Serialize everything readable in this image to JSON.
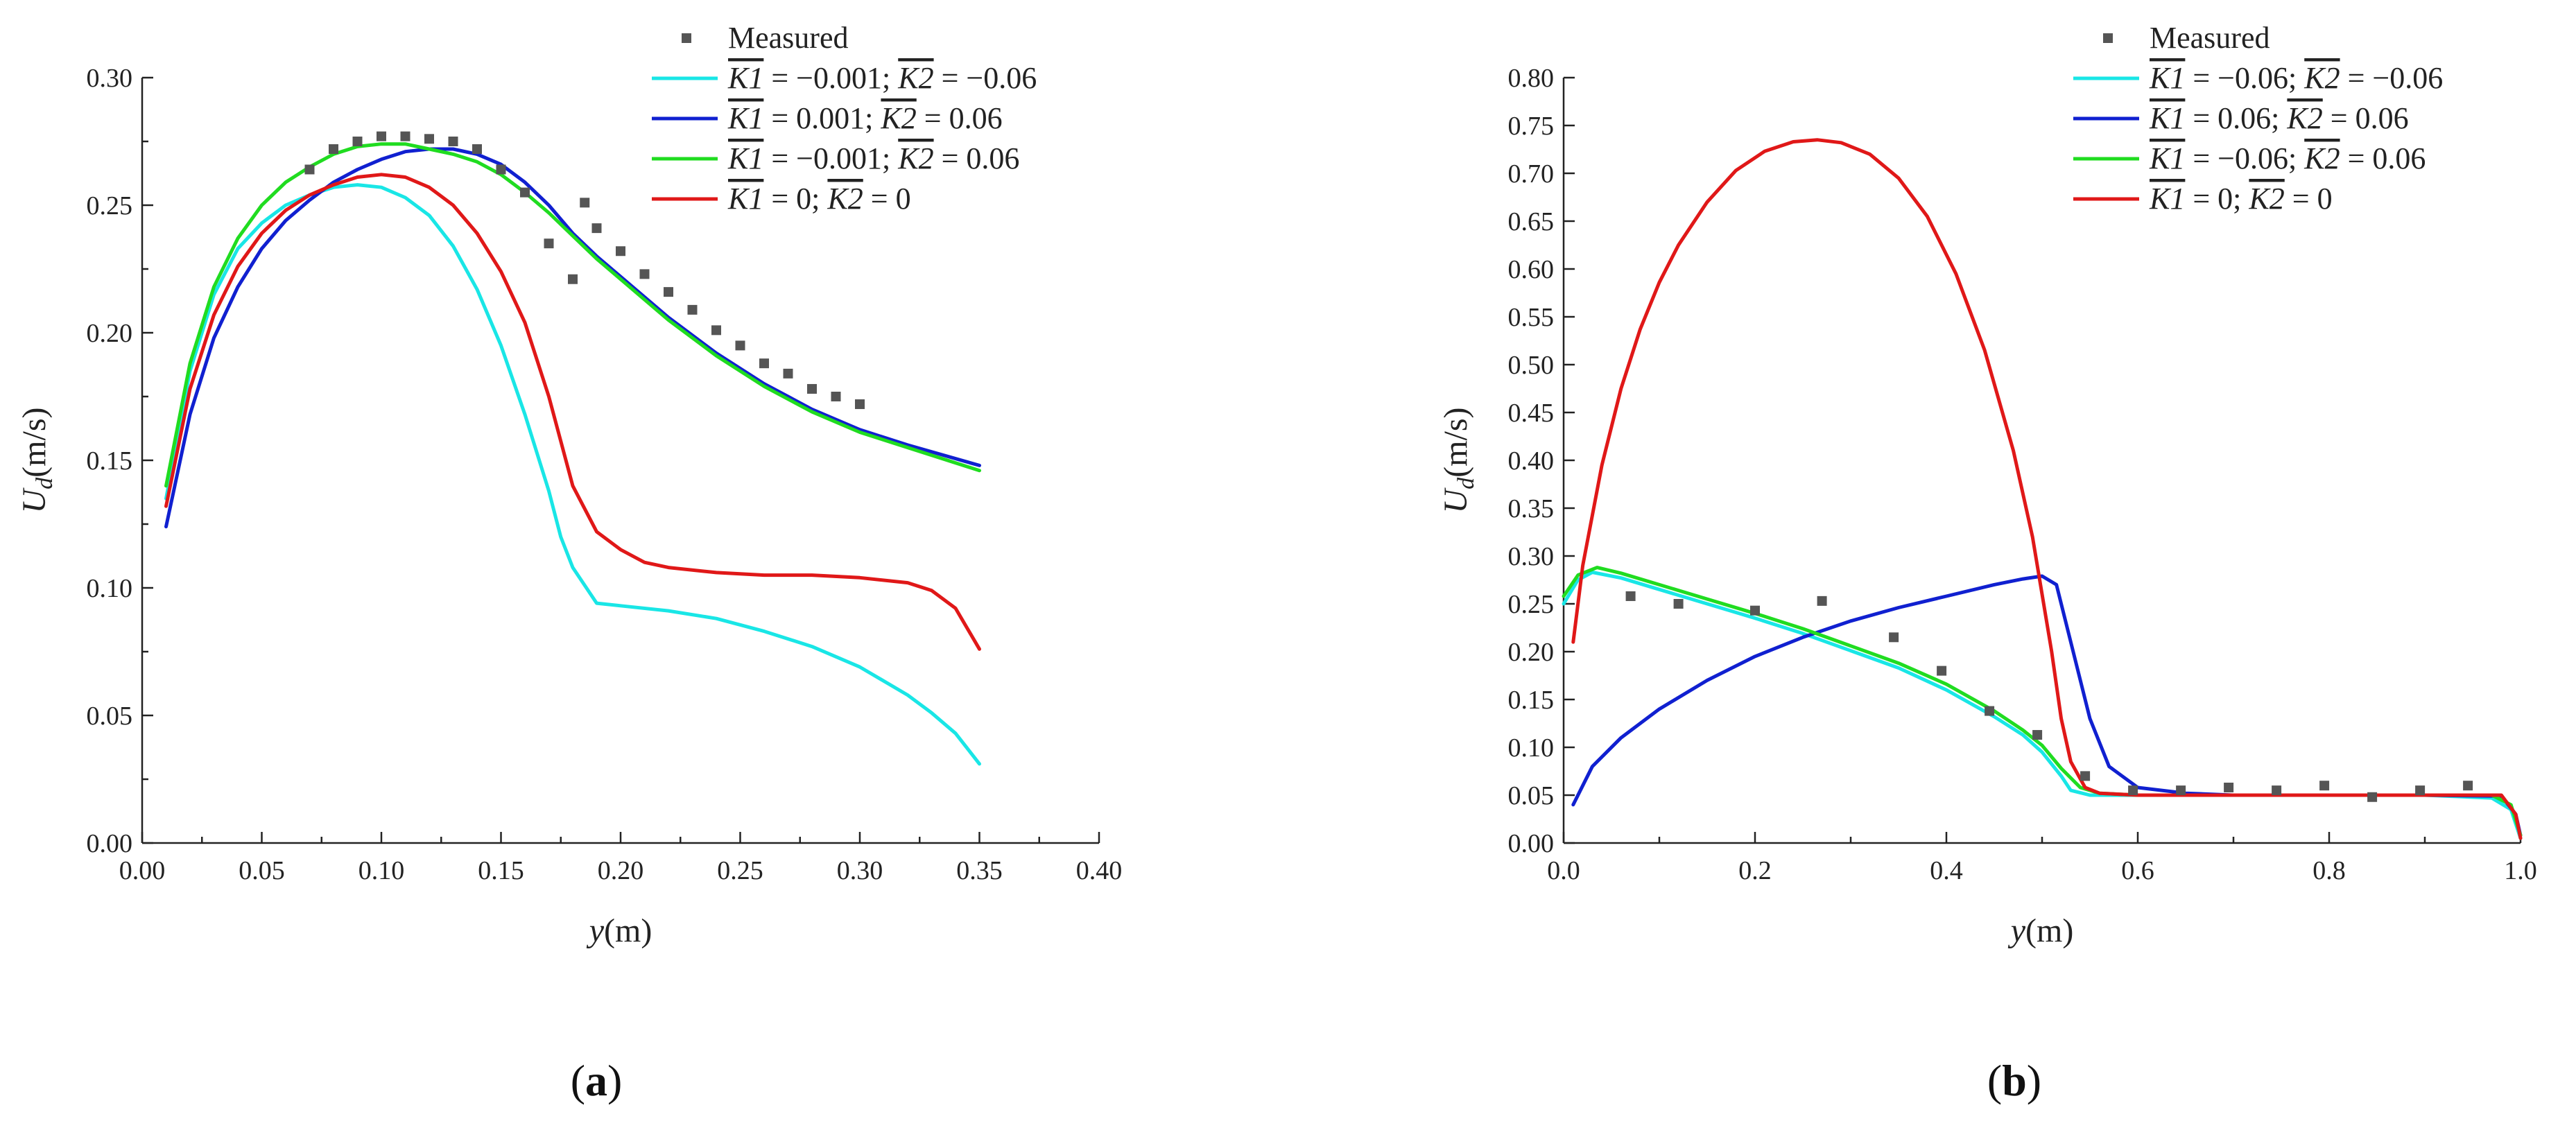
{
  "chart_data": [
    {
      "type": "line",
      "panel_label": "(a)",
      "xlabel": "y(m)",
      "ylabel": "Ud(m/s)",
      "xlim": [
        0.0,
        0.4
      ],
      "ylim": [
        0.0,
        0.3
      ],
      "xticks": [
        "0.00",
        "0.05",
        "0.10",
        "0.15",
        "0.20",
        "0.25",
        "0.30",
        "0.35",
        "0.40"
      ],
      "yticks": [
        "0.00",
        "0.05",
        "0.10",
        "0.15",
        "0.20",
        "0.25",
        "0.30"
      ],
      "legend_position": "top-right",
      "measured": {
        "name": "Measured",
        "color": "#555555",
        "x": [
          0.07,
          0.08,
          0.09,
          0.1,
          0.11,
          0.12,
          0.13,
          0.14,
          0.15,
          0.16,
          0.17,
          0.18,
          0.185,
          0.19,
          0.2,
          0.21,
          0.22,
          0.23,
          0.24,
          0.25,
          0.26,
          0.27,
          0.28,
          0.29,
          0.3
        ],
        "y": [
          0.264,
          0.272,
          0.275,
          0.277,
          0.277,
          0.276,
          0.275,
          0.272,
          0.264,
          0.255,
          0.235,
          0.221,
          0.251,
          0.241,
          0.232,
          0.223,
          0.216,
          0.209,
          0.201,
          0.195,
          0.188,
          0.184,
          0.178,
          0.175,
          0.172
        ]
      },
      "series": [
        {
          "name": "K1 = −0.001; K2 = −0.06",
          "k1": "−0.001",
          "k2": "−0.06",
          "color": "#19e6e6",
          "x": [
            0.01,
            0.02,
            0.03,
            0.04,
            0.05,
            0.06,
            0.07,
            0.08,
            0.09,
            0.1,
            0.11,
            0.12,
            0.13,
            0.14,
            0.15,
            0.16,
            0.17,
            0.175,
            0.18,
            0.19,
            0.2,
            0.22,
            0.24,
            0.26,
            0.28,
            0.3,
            0.32,
            0.33,
            0.34,
            0.35
          ],
          "y": [
            0.135,
            0.185,
            0.215,
            0.233,
            0.243,
            0.25,
            0.254,
            0.257,
            0.258,
            0.257,
            0.253,
            0.246,
            0.234,
            0.217,
            0.195,
            0.168,
            0.138,
            0.12,
            0.108,
            0.094,
            0.093,
            0.091,
            0.088,
            0.083,
            0.077,
            0.069,
            0.058,
            0.051,
            0.043,
            0.031
          ]
        },
        {
          "name": "K1 = 0.001; K2 = 0.06",
          "k1": "0.001",
          "k2": "0.06",
          "color": "#1020d0",
          "x": [
            0.01,
            0.02,
            0.03,
            0.04,
            0.05,
            0.06,
            0.07,
            0.08,
            0.09,
            0.1,
            0.11,
            0.12,
            0.13,
            0.14,
            0.15,
            0.16,
            0.17,
            0.18,
            0.19,
            0.2,
            0.22,
            0.24,
            0.26,
            0.28,
            0.3,
            0.32,
            0.35
          ],
          "y": [
            0.124,
            0.168,
            0.198,
            0.218,
            0.233,
            0.244,
            0.252,
            0.259,
            0.264,
            0.268,
            0.271,
            0.272,
            0.272,
            0.27,
            0.266,
            0.259,
            0.25,
            0.239,
            0.23,
            0.222,
            0.206,
            0.192,
            0.18,
            0.17,
            0.162,
            0.156,
            0.148
          ]
        },
        {
          "name": "K1 = −0.001; K2 = 0.06",
          "k1": "−0.001",
          "k2": "0.06",
          "color": "#20dc20",
          "x": [
            0.01,
            0.02,
            0.03,
            0.04,
            0.05,
            0.06,
            0.07,
            0.08,
            0.09,
            0.1,
            0.11,
            0.12,
            0.13,
            0.14,
            0.15,
            0.16,
            0.17,
            0.18,
            0.19,
            0.2,
            0.22,
            0.24,
            0.26,
            0.28,
            0.3,
            0.32,
            0.35
          ],
          "y": [
            0.14,
            0.188,
            0.218,
            0.237,
            0.25,
            0.259,
            0.265,
            0.27,
            0.273,
            0.274,
            0.274,
            0.272,
            0.27,
            0.267,
            0.262,
            0.255,
            0.247,
            0.238,
            0.229,
            0.221,
            0.205,
            0.191,
            0.179,
            0.169,
            0.161,
            0.155,
            0.146
          ]
        },
        {
          "name": "K1 = 0; K2 = 0",
          "k1": "0",
          "k2": "0",
          "color": "#e01818",
          "x": [
            0.01,
            0.02,
            0.03,
            0.04,
            0.05,
            0.06,
            0.07,
            0.08,
            0.09,
            0.1,
            0.11,
            0.12,
            0.13,
            0.14,
            0.15,
            0.16,
            0.17,
            0.18,
            0.19,
            0.2,
            0.21,
            0.22,
            0.24,
            0.26,
            0.28,
            0.3,
            0.32,
            0.33,
            0.34,
            0.35
          ],
          "y": [
            0.132,
            0.178,
            0.207,
            0.226,
            0.239,
            0.248,
            0.254,
            0.258,
            0.261,
            0.262,
            0.261,
            0.257,
            0.25,
            0.239,
            0.224,
            0.204,
            0.175,
            0.14,
            0.122,
            0.115,
            0.11,
            0.108,
            0.106,
            0.105,
            0.105,
            0.104,
            0.102,
            0.099,
            0.092,
            0.076
          ]
        }
      ]
    },
    {
      "type": "line",
      "panel_label": "(b)",
      "xlabel": "y(m)",
      "ylabel": "Ud(m/s)",
      "xlim": [
        0.0,
        1.0
      ],
      "ylim": [
        0.0,
        0.8
      ],
      "xticks": [
        "0.0",
        "0.2",
        "0.4",
        "0.6",
        "0.8",
        "1.0"
      ],
      "yticks": [
        "0.00",
        "0.05",
        "0.10",
        "0.15",
        "0.20",
        "0.25",
        "0.30",
        "0.35",
        "0.40",
        "0.45",
        "0.50",
        "0.55",
        "0.60",
        "0.65",
        "0.70",
        "0.75",
        "0.80"
      ],
      "legend_position": "top-right",
      "measured": {
        "name": "Measured",
        "color": "#555555",
        "x": [
          0.07,
          0.12,
          0.2,
          0.27,
          0.345,
          0.395,
          0.445,
          0.495,
          0.545,
          0.595,
          0.645,
          0.695,
          0.745,
          0.795,
          0.845,
          0.895,
          0.945
        ],
        "y": [
          0.258,
          0.25,
          0.243,
          0.253,
          0.215,
          0.18,
          0.138,
          0.113,
          0.07,
          0.055,
          0.055,
          0.058,
          0.055,
          0.06,
          0.048,
          0.055,
          0.06
        ]
      },
      "series": [
        {
          "name": "K1 = −0.06; K2 = −0.06",
          "k1": "−0.06",
          "k2": "−0.06",
          "color": "#19e6e6",
          "x": [
            0.0,
            0.015,
            0.03,
            0.06,
            0.1,
            0.15,
            0.2,
            0.25,
            0.3,
            0.35,
            0.4,
            0.45,
            0.48,
            0.5,
            0.52,
            0.53,
            0.55,
            0.6,
            0.7,
            0.8,
            0.9,
            0.97,
            0.99,
            1.0
          ],
          "y": [
            0.25,
            0.275,
            0.283,
            0.277,
            0.265,
            0.25,
            0.235,
            0.219,
            0.201,
            0.183,
            0.16,
            0.132,
            0.113,
            0.095,
            0.07,
            0.055,
            0.05,
            0.05,
            0.05,
            0.05,
            0.05,
            0.047,
            0.035,
            0.005
          ]
        },
        {
          "name": "K1 = 0.06; K2 = 0.06",
          "k1": "0.06",
          "k2": "0.06",
          "color": "#1020d0",
          "x": [
            0.01,
            0.03,
            0.06,
            0.1,
            0.15,
            0.2,
            0.25,
            0.3,
            0.35,
            0.4,
            0.45,
            0.48,
            0.5,
            0.515,
            0.53,
            0.55,
            0.57,
            0.6,
            0.65,
            0.7,
            0.8,
            0.9,
            0.98,
            0.995,
            1.0
          ],
          "y": [
            0.04,
            0.08,
            0.11,
            0.14,
            0.17,
            0.195,
            0.215,
            0.232,
            0.246,
            0.258,
            0.27,
            0.276,
            0.279,
            0.27,
            0.21,
            0.13,
            0.08,
            0.058,
            0.052,
            0.05,
            0.05,
            0.05,
            0.049,
            0.03,
            0.008
          ]
        },
        {
          "name": "K1 = −0.06; K2 = 0.06",
          "k1": "−0.06",
          "k2": "0.06",
          "color": "#20dc20",
          "x": [
            0.0,
            0.015,
            0.035,
            0.06,
            0.1,
            0.15,
            0.2,
            0.25,
            0.3,
            0.35,
            0.4,
            0.45,
            0.48,
            0.5,
            0.52,
            0.54,
            0.56,
            0.6,
            0.7,
            0.8,
            0.9,
            0.97,
            0.99,
            1.0
          ],
          "y": [
            0.258,
            0.28,
            0.288,
            0.282,
            0.27,
            0.255,
            0.24,
            0.224,
            0.206,
            0.188,
            0.166,
            0.138,
            0.118,
            0.102,
            0.078,
            0.058,
            0.052,
            0.05,
            0.05,
            0.05,
            0.05,
            0.05,
            0.04,
            0.008
          ]
        },
        {
          "name": "K1 = 0; K2 = 0",
          "k1": "0",
          "k2": "0",
          "color": "#e01818",
          "x": [
            0.01,
            0.02,
            0.04,
            0.06,
            0.08,
            0.1,
            0.12,
            0.15,
            0.18,
            0.21,
            0.24,
            0.265,
            0.29,
            0.32,
            0.35,
            0.38,
            0.41,
            0.44,
            0.47,
            0.49,
            0.51,
            0.52,
            0.53,
            0.545,
            0.56,
            0.6,
            0.7,
            0.8,
            0.9,
            0.98,
            0.995,
            1.0
          ],
          "y": [
            0.21,
            0.29,
            0.395,
            0.475,
            0.537,
            0.586,
            0.625,
            0.67,
            0.703,
            0.723,
            0.733,
            0.735,
            0.732,
            0.72,
            0.695,
            0.655,
            0.595,
            0.515,
            0.41,
            0.32,
            0.2,
            0.13,
            0.085,
            0.058,
            0.052,
            0.05,
            0.05,
            0.05,
            0.05,
            0.05,
            0.03,
            0.005
          ]
        }
      ]
    }
  ]
}
